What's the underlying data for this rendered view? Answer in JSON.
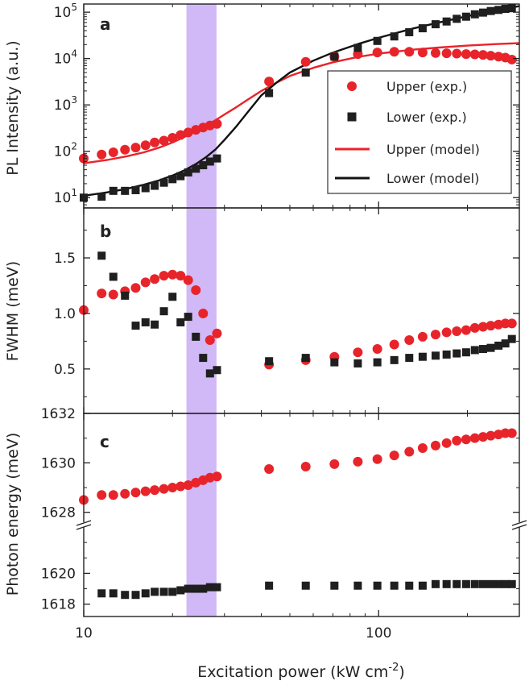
{
  "chart_data": [
    {
      "panel": "a",
      "type": "scatter",
      "ylabel": "PL Intensity (a.u.)",
      "yscale": "log",
      "ylim": [
        6,
        150000
      ],
      "xscale": "log",
      "xlim": [
        10,
        300
      ],
      "shaded_band": [
        22.3,
        28.2
      ],
      "yticks": [
        {
          "v": 10,
          "base": "10",
          "exp": "1"
        },
        {
          "v": 100,
          "base": "10",
          "exp": "2"
        },
        {
          "v": 1000,
          "base": "10",
          "exp": "3"
        },
        {
          "v": 10000,
          "base": "10",
          "exp": "4"
        },
        {
          "v": 100000,
          "base": "10",
          "exp": "5"
        }
      ],
      "legend": {
        "placement": "center-right",
        "entries": [
          "Upper (exp.)",
          "Lower (exp.)",
          "Upper (model)",
          "Lower (model)"
        ]
      },
      "series": [
        {
          "name": "Upper (exp.)",
          "marker": "circle",
          "color": "#e8242b",
          "x": [
            10,
            11.5,
            12.6,
            13.8,
            15,
            16.2,
            17.4,
            18.7,
            20,
            21.3,
            22.6,
            24,
            25.4,
            26.8,
            28.3,
            42.5,
            56.6,
            70.8,
            85,
            99,
            113,
            127,
            141,
            156,
            170,
            184,
            198,
            212,
            226,
            240,
            255,
            269,
            283
          ],
          "y": [
            70,
            85,
            95,
            108,
            120,
            135,
            155,
            170,
            195,
            225,
            255,
            290,
            325,
            360,
            390,
            3200,
            8500,
            11000,
            12500,
            13500,
            14000,
            14000,
            13500,
            13200,
            13000,
            12800,
            12500,
            12300,
            12000,
            11500,
            11000,
            10500,
            9500
          ]
        },
        {
          "name": "Lower (exp.)",
          "marker": "square",
          "color": "#1f1f1f",
          "x": [
            10,
            11.5,
            12.6,
            13.8,
            15,
            16.2,
            17.4,
            18.7,
            20,
            21.3,
            22.6,
            24,
            25.4,
            26.8,
            28.3,
            42.5,
            56.6,
            70.8,
            85,
            99,
            113,
            127,
            141,
            156,
            170,
            184,
            198,
            212,
            226,
            240,
            255,
            269,
            283
          ],
          "y": [
            10,
            10.5,
            14,
            14,
            14.5,
            16,
            18,
            21,
            25,
            29,
            35,
            42,
            50,
            60,
            70,
            1800,
            5000,
            11000,
            17000,
            24000,
            30000,
            37000,
            45000,
            55000,
            63000,
            72000,
            80000,
            90000,
            98000,
            106000,
            112000,
            118000,
            122000
          ]
        },
        {
          "name": "Upper (model)",
          "style": "line",
          "color": "#e8242b",
          "x": [
            10,
            12,
            14,
            16,
            18,
            20,
            22,
            24,
            26,
            28,
            30,
            33,
            36,
            40,
            45,
            50,
            60,
            70,
            85,
            100,
            130,
            160,
            200,
            250,
            300
          ],
          "y": [
            55,
            65,
            78,
            95,
            120,
            155,
            205,
            270,
            360,
            470,
            620,
            900,
            1300,
            2000,
            3000,
            4200,
            6300,
            8300,
            10800,
            12800,
            15500,
            17300,
            19000,
            20500,
            21500
          ]
        },
        {
          "name": "Lower (model)",
          "style": "line",
          "color": "#111111",
          "x": [
            10,
            12,
            14,
            16,
            18,
            20,
            22,
            24,
            26,
            28,
            30,
            33,
            36,
            40,
            45,
            50,
            60,
            70,
            85,
            100,
            130,
            160,
            200,
            250,
            300
          ],
          "y": [
            11,
            13,
            15.5,
            19,
            23.5,
            30,
            39,
            53,
            75,
            110,
            175,
            350,
            700,
            1600,
            3000,
            5000,
            9000,
            13500,
            20500,
            28000,
            44000,
            60000,
            82000,
            110000,
            135000
          ]
        }
      ]
    },
    {
      "panel": "b",
      "type": "scatter",
      "ylabel": "FWHM (meV)",
      "ylim": [
        0.1,
        1.95
      ],
      "yticks": [
        0.5,
        1.0,
        1.5
      ],
      "series": [
        {
          "name": "Upper (exp.)",
          "marker": "circle",
          "color": "#e8242b",
          "x": [
            10,
            11.5,
            12.6,
            13.8,
            15,
            16.2,
            17.4,
            18.7,
            20,
            21.3,
            22.6,
            24,
            25.4,
            26.8,
            28.3,
            42.5,
            56.6,
            70.8,
            85,
            99,
            113,
            127,
            141,
            156,
            170,
            184,
            198,
            212,
            226,
            240,
            255,
            269,
            283
          ],
          "y": [
            1.03,
            1.18,
            1.17,
            1.2,
            1.23,
            1.28,
            1.31,
            1.34,
            1.35,
            1.34,
            1.3,
            1.21,
            1.0,
            0.76,
            0.82,
            0.54,
            0.58,
            0.61,
            0.65,
            0.68,
            0.72,
            0.76,
            0.79,
            0.81,
            0.83,
            0.84,
            0.85,
            0.87,
            0.88,
            0.89,
            0.9,
            0.91,
            0.91
          ]
        },
        {
          "name": "Lower (exp.)",
          "marker": "square",
          "color": "#1f1f1f",
          "x": [
            11.5,
            12.6,
            13.8,
            15,
            16.2,
            17.4,
            18.7,
            20,
            21.3,
            22.6,
            24,
            25.4,
            26.8,
            28.3,
            42.5,
            56.6,
            70.8,
            85,
            99,
            113,
            127,
            141,
            156,
            170,
            184,
            198,
            212,
            226,
            240,
            255,
            269,
            283
          ],
          "y": [
            1.52,
            1.33,
            1.16,
            0.89,
            0.92,
            0.9,
            1.02,
            1.15,
            0.92,
            0.97,
            0.79,
            0.6,
            0.46,
            0.49,
            0.57,
            0.6,
            0.56,
            0.55,
            0.56,
            0.58,
            0.6,
            0.61,
            0.62,
            0.63,
            0.64,
            0.65,
            0.67,
            0.68,
            0.69,
            0.71,
            0.73,
            0.77
          ]
        }
      ]
    },
    {
      "panel": "c",
      "type": "scatter",
      "ylabel": "Photon energy (meV)",
      "xlabel_main": "Excitation power (kW cm",
      "xlabel_sup": "-2",
      "xlabel_end": ")",
      "xticks": [
        "10",
        "100"
      ],
      "axis_break": true,
      "upper_segment": {
        "ylim": [
          1627.6,
          1632
        ],
        "yticks": [
          1628,
          1630,
          1632
        ]
      },
      "lower_segment": {
        "ylim": [
          1617.2,
          1623
        ],
        "yticks": [
          1618,
          1620
        ]
      },
      "series": [
        {
          "name": "Upper (exp.)",
          "marker": "circle",
          "color": "#e8242b",
          "segment": "upper",
          "x": [
            10,
            11.5,
            12.6,
            13.8,
            15,
            16.2,
            17.4,
            18.7,
            20,
            21.3,
            22.6,
            24,
            25.4,
            26.8,
            28.3,
            42.5,
            56.6,
            70.8,
            85,
            99,
            113,
            127,
            141,
            156,
            170,
            184,
            198,
            212,
            226,
            240,
            255,
            269,
            283
          ],
          "y": [
            1628.5,
            1628.7,
            1628.7,
            1628.75,
            1628.8,
            1628.85,
            1628.9,
            1628.95,
            1629.0,
            1629.05,
            1629.1,
            1629.2,
            1629.3,
            1629.4,
            1629.45,
            1629.75,
            1629.85,
            1629.95,
            1630.05,
            1630.15,
            1630.3,
            1630.45,
            1630.6,
            1630.7,
            1630.8,
            1630.9,
            1630.95,
            1631.0,
            1631.05,
            1631.1,
            1631.15,
            1631.2,
            1631.2
          ]
        },
        {
          "name": "Lower (exp.)",
          "marker": "square",
          "color": "#1f1f1f",
          "segment": "lower",
          "x": [
            11.5,
            12.6,
            13.8,
            15,
            16.2,
            17.4,
            18.7,
            20,
            21.3,
            22.6,
            24,
            25.4,
            26.8,
            28.3,
            42.5,
            56.6,
            70.8,
            85,
            99,
            113,
            127,
            141,
            156,
            170,
            184,
            198,
            212,
            226,
            240,
            255,
            269,
            283
          ],
          "y": [
            1618.7,
            1618.7,
            1618.6,
            1618.6,
            1618.7,
            1618.8,
            1618.8,
            1618.8,
            1618.9,
            1619.0,
            1619.0,
            1619.0,
            1619.1,
            1619.1,
            1619.2,
            1619.2,
            1619.2,
            1619.2,
            1619.2,
            1619.2,
            1619.2,
            1619.2,
            1619.3,
            1619.3,
            1619.3,
            1619.3,
            1619.3,
            1619.3,
            1619.3,
            1619.3,
            1619.3,
            1619.3
          ]
        }
      ]
    }
  ]
}
